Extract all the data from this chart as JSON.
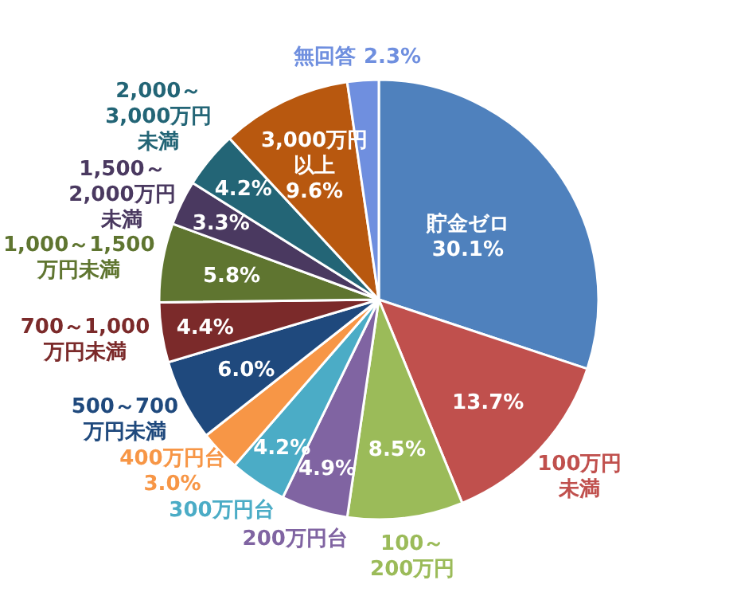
{
  "chart_data": {
    "type": "pie",
    "categories": [
      "貯金ゼロ",
      "100万円未満",
      "100～200万円",
      "200万円台",
      "300万円台",
      "400万円台",
      "500～700万円未満",
      "700～1,000万円未満",
      "1,000～1,500万円未満",
      "1,500～2,000万円未満",
      "2,000～3,000万円未満",
      "3,000万円以上",
      "無回答"
    ],
    "values": [
      30.1,
      13.7,
      8.5,
      4.9,
      4.2,
      3.0,
      6.0,
      4.4,
      5.8,
      3.3,
      4.2,
      9.6,
      2.3
    ],
    "value_labels": [
      "30.1%",
      "13.7%",
      "8.5%",
      "4.9%",
      "4.2%",
      "3.0%",
      "6.0%",
      "4.4%",
      "5.8%",
      "3.3%",
      "4.2%",
      "9.6%",
      "2.3%"
    ],
    "colors": [
      "#4f81bd",
      "#c0504d",
      "#9bbb59",
      "#8064a2",
      "#4bacc6",
      "#f79646",
      "#1f497d",
      "#7b2a2a",
      "#5f7530",
      "#4a3960",
      "#236576",
      "#b8580f",
      "#6f8fdf"
    ]
  }
}
